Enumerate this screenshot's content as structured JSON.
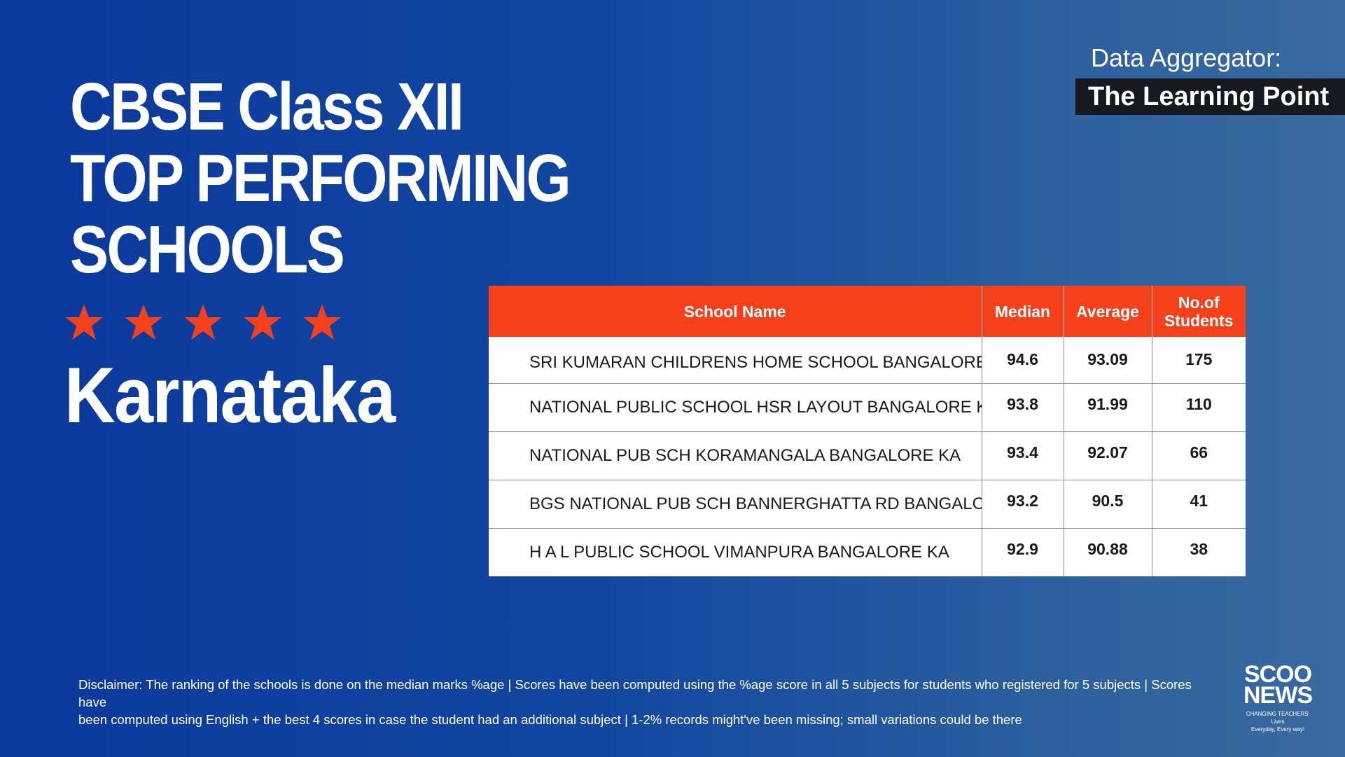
{
  "title": {
    "line1": "CBSE Class XII",
    "line2": "TOP PERFORMING",
    "line3": "SCHOOLS"
  },
  "rating": {
    "stars": 5,
    "color": "#f4411c"
  },
  "state": "Karnataka",
  "aggregator": {
    "label": "Data Aggregator:",
    "name": "The Learning Point"
  },
  "table": {
    "headers": {
      "school": "School Name",
      "median": "Median",
      "average": "Average",
      "students_line1": "No.of",
      "students_line2": "Students"
    },
    "rows": [
      {
        "school": "SRI KUMARAN CHILDRENS HOME SCHOOL BANGALORE KA",
        "median": "94.6",
        "average": "93.09",
        "students": "175"
      },
      {
        "school": "NATIONAL PUBLIC SCHOOL HSR LAYOUT BANGALORE KA",
        "median": "93.8",
        "average": "91.99",
        "students": "110"
      },
      {
        "school": "NATIONAL PUB SCH KORAMANGALA BANGALORE KA",
        "median": "93.4",
        "average": "92.07",
        "students": "66"
      },
      {
        "school": "BGS NATIONAL PUB SCH BANNERGHATTA RD BANGALORE KA",
        "median": "93.2",
        "average": "90.5",
        "students": "41"
      },
      {
        "school": "H A L PUBLIC SCHOOL VIMANPURA BANGALORE KA",
        "median": "92.9",
        "average": "90.88",
        "students": "38"
      }
    ]
  },
  "disclaimer": {
    "line1": "Disclaimer: The ranking of the schools is done on the median marks %age | Scores have been computed using the %age score in all 5 subjects for students who registered for 5 subjects | Scores have",
    "line2": "been computed using English + the best 4 scores in case the student had an additional subject | 1-2% records might've been missing; small variations could be there"
  },
  "logo": {
    "line1": "SCOO",
    "line2": "NEWS",
    "tagline1": "CHANGING TEACHERS' Lives",
    "tagline2": "Everyday, Every way!"
  }
}
